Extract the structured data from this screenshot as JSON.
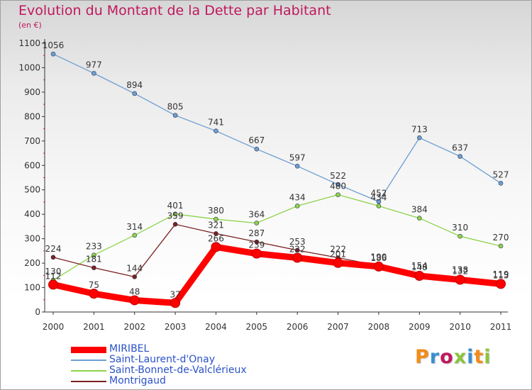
{
  "title": "Evolution du Montant de la Dette par Habitant",
  "unit": "(en €)",
  "logo": {
    "text": "Proxiti",
    "colors": [
      "#f28c1a",
      "#3a8fd1",
      "#c0185e",
      "#8cc43d",
      "#3a8fd1",
      "#f28c1a",
      "#8cc43d"
    ]
  },
  "chart_data": {
    "type": "line",
    "title": "Evolution du Montant de la Dette par Habitant",
    "ylabel": "(en €)",
    "xlabel": "",
    "ylim": [
      0,
      1100
    ],
    "yticks": [
      "0",
      "100",
      "200",
      "300",
      "400",
      "500",
      "600",
      "700",
      "800",
      "900",
      "1000",
      "1100"
    ],
    "categories": [
      "2000",
      "2001",
      "2002",
      "2003",
      "2004",
      "2005",
      "2006",
      "2007",
      "2008",
      "2009",
      "2010",
      "2011"
    ],
    "grid": false,
    "legend_position": "bottom-left",
    "series": [
      {
        "name": "MIRIBEL",
        "color": "#ff0000",
        "values": [
          112,
          75,
          48,
          37,
          266,
          239,
          222,
          201,
          186,
          148,
          132,
          115
        ]
      },
      {
        "name": "Saint-Laurent-d'Onay",
        "color": "#6c9fcf",
        "values": [
          1056,
          977,
          894,
          805,
          741,
          667,
          597,
          522,
          452,
          713,
          637,
          527
        ]
      },
      {
        "name": "Saint-Bonnet-de-Valclérieux",
        "color": "#8cd44a",
        "values": [
          130,
          233,
          314,
          401,
          380,
          364,
          434,
          480,
          434,
          384,
          310,
          270
        ]
      },
      {
        "name": "Montrigaud",
        "color": "#7a2020",
        "values": [
          224,
          181,
          144,
          359,
          321,
          287,
          253,
          222,
          190,
          154,
          138,
          119
        ]
      }
    ]
  }
}
